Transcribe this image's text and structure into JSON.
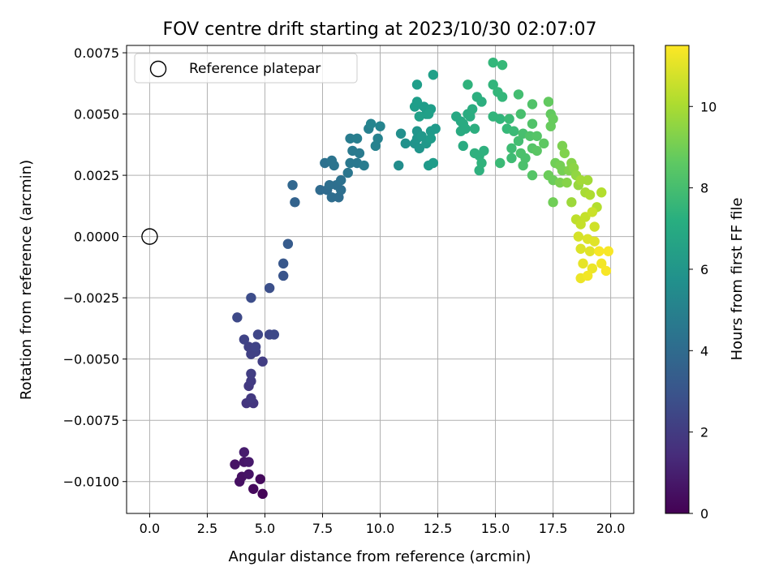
{
  "chart_data": {
    "type": "scatter",
    "title": "FOV centre drift starting at 2023/10/30 02:07:07",
    "xlabel": "Angular distance from reference (arcmin)",
    "ylabel": "Rotation from reference (arcmin)",
    "xlim": [
      -1.0,
      21.0
    ],
    "ylim": [
      -0.0113,
      0.0078
    ],
    "xticks": [
      0.0,
      2.5,
      5.0,
      7.5,
      10.0,
      12.5,
      15.0,
      17.5,
      20.0
    ],
    "xtick_labels": [
      "0.0",
      "2.5",
      "5.0",
      "7.5",
      "10.0",
      "12.5",
      "15.0",
      "17.5",
      "20.0"
    ],
    "yticks": [
      -0.01,
      -0.0075,
      -0.005,
      -0.0025,
      0.0,
      0.0025,
      0.005,
      0.0075
    ],
    "ytick_labels": [
      "−0.0100",
      "−0.0075",
      "−0.0050",
      "−0.0025",
      "0.0000",
      "0.0025",
      "0.0050",
      "0.0075"
    ],
    "grid": true,
    "legend": {
      "position": "top-left",
      "entries": [
        {
          "label": "Reference platepar",
          "marker": "open-circle"
        }
      ]
    },
    "reference_point": {
      "x": 0.0,
      "y": 0.0
    },
    "colorbar": {
      "label": "Hours from first FF file",
      "colormap": "viridis",
      "range": [
        0,
        11.5
      ],
      "ticks": [
        0,
        2,
        4,
        6,
        8,
        10
      ],
      "tick_labels": [
        "0",
        "2",
        "4",
        "6",
        "8",
        "10"
      ]
    },
    "series": [
      {
        "points": [
          {
            "x": 4.9,
            "y": -0.0105,
            "c": 0.1
          },
          {
            "x": 4.5,
            "y": -0.0103,
            "c": 0.3
          },
          {
            "x": 4.8,
            "y": -0.0099,
            "c": 0.3
          },
          {
            "x": 3.9,
            "y": -0.01,
            "c": 0.5
          },
          {
            "x": 4.0,
            "y": -0.0098,
            "c": 0.5
          },
          {
            "x": 4.3,
            "y": -0.0097,
            "c": 0.6
          },
          {
            "x": 3.7,
            "y": -0.0093,
            "c": 0.6
          },
          {
            "x": 4.1,
            "y": -0.0092,
            "c": 0.7
          },
          {
            "x": 4.3,
            "y": -0.0092,
            "c": 0.8
          },
          {
            "x": 4.1,
            "y": -0.0088,
            "c": 0.9
          },
          {
            "x": 4.2,
            "y": -0.0068,
            "c": 1.8
          },
          {
            "x": 4.5,
            "y": -0.0068,
            "c": 1.8
          },
          {
            "x": 4.4,
            "y": -0.0066,
            "c": 1.9
          },
          {
            "x": 4.3,
            "y": -0.0061,
            "c": 1.9
          },
          {
            "x": 4.4,
            "y": -0.0059,
            "c": 2.0
          },
          {
            "x": 4.4,
            "y": -0.0056,
            "c": 2.1
          },
          {
            "x": 4.9,
            "y": -0.0051,
            "c": 2.1
          },
          {
            "x": 4.4,
            "y": -0.0048,
            "c": 2.2
          },
          {
            "x": 4.6,
            "y": -0.0047,
            "c": 2.2
          },
          {
            "x": 4.3,
            "y": -0.0045,
            "c": 2.2
          },
          {
            "x": 4.6,
            "y": -0.0045,
            "c": 2.3
          },
          {
            "x": 4.1,
            "y": -0.0042,
            "c": 2.3
          },
          {
            "x": 4.7,
            "y": -0.004,
            "c": 2.4
          },
          {
            "x": 5.2,
            "y": -0.004,
            "c": 2.4
          },
          {
            "x": 5.4,
            "y": -0.004,
            "c": 2.5
          },
          {
            "x": 3.8,
            "y": -0.0033,
            "c": 2.5
          },
          {
            "x": 4.4,
            "y": -0.0025,
            "c": 2.7
          },
          {
            "x": 5.2,
            "y": -0.0021,
            "c": 2.8
          },
          {
            "x": 5.8,
            "y": -0.0016,
            "c": 3.0
          },
          {
            "x": 5.8,
            "y": -0.0011,
            "c": 3.1
          },
          {
            "x": 6.0,
            "y": -0.0003,
            "c": 3.3
          },
          {
            "x": 6.3,
            "y": 0.0014,
            "c": 3.6
          },
          {
            "x": 6.2,
            "y": 0.0021,
            "c": 3.8
          },
          {
            "x": 7.4,
            "y": 0.0019,
            "c": 4.0
          },
          {
            "x": 7.7,
            "y": 0.0019,
            "c": 4.0
          },
          {
            "x": 7.9,
            "y": 0.0016,
            "c": 4.1
          },
          {
            "x": 8.2,
            "y": 0.0016,
            "c": 4.1
          },
          {
            "x": 8.3,
            "y": 0.0019,
            "c": 4.2
          },
          {
            "x": 8.1,
            "y": 0.0021,
            "c": 4.2
          },
          {
            "x": 7.8,
            "y": 0.0021,
            "c": 4.2
          },
          {
            "x": 8.3,
            "y": 0.0023,
            "c": 4.3
          },
          {
            "x": 7.6,
            "y": 0.003,
            "c": 4.3
          },
          {
            "x": 7.9,
            "y": 0.0031,
            "c": 4.4
          },
          {
            "x": 8.0,
            "y": 0.0029,
            "c": 4.4
          },
          {
            "x": 8.6,
            "y": 0.0026,
            "c": 4.5
          },
          {
            "x": 8.7,
            "y": 0.003,
            "c": 4.6
          },
          {
            "x": 9.0,
            "y": 0.003,
            "c": 4.6
          },
          {
            "x": 8.8,
            "y": 0.0035,
            "c": 4.7
          },
          {
            "x": 9.1,
            "y": 0.0034,
            "c": 4.7
          },
          {
            "x": 9.3,
            "y": 0.0029,
            "c": 4.8
          },
          {
            "x": 8.7,
            "y": 0.004,
            "c": 4.8
          },
          {
            "x": 9.0,
            "y": 0.004,
            "c": 4.9
          },
          {
            "x": 9.5,
            "y": 0.0044,
            "c": 5.0
          },
          {
            "x": 9.9,
            "y": 0.004,
            "c": 5.1
          },
          {
            "x": 9.8,
            "y": 0.0037,
            "c": 5.1
          },
          {
            "x": 10.0,
            "y": 0.0045,
            "c": 5.2
          },
          {
            "x": 9.6,
            "y": 0.0046,
            "c": 5.2
          },
          {
            "x": 10.8,
            "y": 0.0029,
            "c": 5.6
          },
          {
            "x": 10.9,
            "y": 0.0042,
            "c": 5.7
          },
          {
            "x": 11.1,
            "y": 0.0038,
            "c": 5.8
          },
          {
            "x": 11.5,
            "y": 0.0038,
            "c": 5.9
          },
          {
            "x": 11.7,
            "y": 0.0036,
            "c": 6.0
          },
          {
            "x": 11.6,
            "y": 0.004,
            "c": 6.0
          },
          {
            "x": 11.6,
            "y": 0.0043,
            "c": 6.0
          },
          {
            "x": 11.8,
            "y": 0.0041,
            "c": 6.1
          },
          {
            "x": 12.0,
            "y": 0.0038,
            "c": 6.1
          },
          {
            "x": 12.2,
            "y": 0.0043,
            "c": 6.2
          },
          {
            "x": 12.4,
            "y": 0.0044,
            "c": 6.2
          },
          {
            "x": 12.1,
            "y": 0.0029,
            "c": 6.2
          },
          {
            "x": 12.3,
            "y": 0.003,
            "c": 6.3
          },
          {
            "x": 12.2,
            "y": 0.004,
            "c": 6.3
          },
          {
            "x": 12.0,
            "y": 0.005,
            "c": 6.3
          },
          {
            "x": 11.9,
            "y": 0.0053,
            "c": 6.3
          },
          {
            "x": 12.2,
            "y": 0.0052,
            "c": 6.4
          },
          {
            "x": 11.5,
            "y": 0.0053,
            "c": 6.4
          },
          {
            "x": 11.6,
            "y": 0.0055,
            "c": 6.4
          },
          {
            "x": 11.6,
            "y": 0.0062,
            "c": 6.4
          },
          {
            "x": 12.3,
            "y": 0.0066,
            "c": 6.5
          },
          {
            "x": 11.7,
            "y": 0.0049,
            "c": 6.5
          },
          {
            "x": 12.1,
            "y": 0.005,
            "c": 6.5
          },
          {
            "x": 13.3,
            "y": 0.0049,
            "c": 6.9
          },
          {
            "x": 13.5,
            "y": 0.0047,
            "c": 6.9
          },
          {
            "x": 13.6,
            "y": 0.0046,
            "c": 7.0
          },
          {
            "x": 13.5,
            "y": 0.0043,
            "c": 7.0
          },
          {
            "x": 13.6,
            "y": 0.0037,
            "c": 7.0
          },
          {
            "x": 13.7,
            "y": 0.0044,
            "c": 7.0
          },
          {
            "x": 13.8,
            "y": 0.005,
            "c": 7.1
          },
          {
            "x": 13.9,
            "y": 0.0049,
            "c": 7.1
          },
          {
            "x": 14.0,
            "y": 0.0052,
            "c": 7.1
          },
          {
            "x": 14.2,
            "y": 0.0057,
            "c": 7.2
          },
          {
            "x": 14.4,
            "y": 0.0055,
            "c": 7.2
          },
          {
            "x": 14.1,
            "y": 0.0044,
            "c": 7.2
          },
          {
            "x": 14.1,
            "y": 0.0034,
            "c": 7.3
          },
          {
            "x": 14.3,
            "y": 0.0033,
            "c": 7.3
          },
          {
            "x": 14.5,
            "y": 0.0035,
            "c": 7.3
          },
          {
            "x": 14.3,
            "y": 0.0027,
            "c": 7.3
          },
          {
            "x": 14.4,
            "y": 0.003,
            "c": 7.4
          },
          {
            "x": 13.8,
            "y": 0.0062,
            "c": 7.4
          },
          {
            "x": 14.9,
            "y": 0.0049,
            "c": 7.5
          },
          {
            "x": 15.2,
            "y": 0.0048,
            "c": 7.5
          },
          {
            "x": 14.9,
            "y": 0.0062,
            "c": 7.5
          },
          {
            "x": 15.1,
            "y": 0.0059,
            "c": 7.6
          },
          {
            "x": 15.3,
            "y": 0.0057,
            "c": 7.6
          },
          {
            "x": 14.9,
            "y": 0.0071,
            "c": 7.6
          },
          {
            "x": 15.3,
            "y": 0.007,
            "c": 7.7
          },
          {
            "x": 15.5,
            "y": 0.0044,
            "c": 7.7
          },
          {
            "x": 15.6,
            "y": 0.0048,
            "c": 7.8
          },
          {
            "x": 15.8,
            "y": 0.0043,
            "c": 7.8
          },
          {
            "x": 15.2,
            "y": 0.003,
            "c": 7.8
          },
          {
            "x": 15.7,
            "y": 0.0032,
            "c": 7.9
          },
          {
            "x": 15.7,
            "y": 0.0036,
            "c": 7.9
          },
          {
            "x": 16.0,
            "y": 0.0039,
            "c": 8.0
          },
          {
            "x": 16.0,
            "y": 0.0058,
            "c": 8.0
          },
          {
            "x": 16.1,
            "y": 0.005,
            "c": 8.1
          },
          {
            "x": 16.2,
            "y": 0.0042,
            "c": 8.1
          },
          {
            "x": 16.1,
            "y": 0.0034,
            "c": 8.2
          },
          {
            "x": 16.3,
            "y": 0.0032,
            "c": 8.2
          },
          {
            "x": 16.2,
            "y": 0.0029,
            "c": 8.2
          },
          {
            "x": 16.6,
            "y": 0.0046,
            "c": 8.3
          },
          {
            "x": 16.6,
            "y": 0.0054,
            "c": 8.3
          },
          {
            "x": 16.5,
            "y": 0.0041,
            "c": 8.3
          },
          {
            "x": 16.6,
            "y": 0.0036,
            "c": 8.4
          },
          {
            "x": 16.6,
            "y": 0.0025,
            "c": 8.4
          },
          {
            "x": 16.8,
            "y": 0.0041,
            "c": 8.4
          },
          {
            "x": 16.8,
            "y": 0.0035,
            "c": 8.5
          },
          {
            "x": 17.1,
            "y": 0.0038,
            "c": 8.6
          },
          {
            "x": 17.3,
            "y": 0.0055,
            "c": 8.7
          },
          {
            "x": 17.4,
            "y": 0.005,
            "c": 8.7
          },
          {
            "x": 17.5,
            "y": 0.0048,
            "c": 8.8
          },
          {
            "x": 17.4,
            "y": 0.0045,
            "c": 8.8
          },
          {
            "x": 17.3,
            "y": 0.0025,
            "c": 8.9
          },
          {
            "x": 17.5,
            "y": 0.0023,
            "c": 8.9
          },
          {
            "x": 17.5,
            "y": 0.0014,
            "c": 9.0
          },
          {
            "x": 17.6,
            "y": 0.003,
            "c": 9.0
          },
          {
            "x": 17.8,
            "y": 0.0029,
            "c": 9.1
          },
          {
            "x": 17.9,
            "y": 0.0027,
            "c": 9.1
          },
          {
            "x": 17.8,
            "y": 0.0022,
            "c": 9.2
          },
          {
            "x": 17.9,
            "y": 0.0037,
            "c": 9.2
          },
          {
            "x": 18.0,
            "y": 0.0034,
            "c": 9.3
          },
          {
            "x": 18.2,
            "y": 0.0027,
            "c": 9.3
          },
          {
            "x": 18.1,
            "y": 0.0022,
            "c": 9.4
          },
          {
            "x": 18.3,
            "y": 0.003,
            "c": 9.4
          },
          {
            "x": 18.4,
            "y": 0.0028,
            "c": 9.5
          },
          {
            "x": 18.5,
            "y": 0.0025,
            "c": 9.6
          },
          {
            "x": 18.6,
            "y": 0.0021,
            "c": 9.7
          },
          {
            "x": 18.3,
            "y": 0.0014,
            "c": 9.8
          },
          {
            "x": 18.7,
            "y": 0.0023,
            "c": 9.9
          },
          {
            "x": 19.0,
            "y": 0.0023,
            "c": 9.9
          },
          {
            "x": 18.9,
            "y": 0.0018,
            "c": 10.0
          },
          {
            "x": 19.1,
            "y": 0.0017,
            "c": 10.1
          },
          {
            "x": 19.4,
            "y": 0.0012,
            "c": 10.2
          },
          {
            "x": 19.6,
            "y": 0.0018,
            "c": 10.2
          },
          {
            "x": 18.5,
            "y": 0.0007,
            "c": 10.4
          },
          {
            "x": 18.7,
            "y": 0.0005,
            "c": 10.5
          },
          {
            "x": 18.9,
            "y": 0.0008,
            "c": 10.5
          },
          {
            "x": 19.2,
            "y": 0.001,
            "c": 10.6
          },
          {
            "x": 19.3,
            "y": 0.0004,
            "c": 10.7
          },
          {
            "x": 18.6,
            "y": 0.0,
            "c": 10.8
          },
          {
            "x": 19.0,
            "y": -0.0001,
            "c": 10.9
          },
          {
            "x": 18.7,
            "y": -0.0005,
            "c": 10.9
          },
          {
            "x": 19.3,
            "y": -0.0002,
            "c": 11.0
          },
          {
            "x": 19.1,
            "y": -0.0006,
            "c": 11.0
          },
          {
            "x": 18.8,
            "y": -0.0011,
            "c": 11.1
          },
          {
            "x": 19.2,
            "y": -0.0013,
            "c": 11.2
          },
          {
            "x": 18.7,
            "y": -0.0017,
            "c": 11.2
          },
          {
            "x": 19.0,
            "y": -0.0016,
            "c": 11.3
          },
          {
            "x": 19.6,
            "y": -0.0011,
            "c": 11.3
          },
          {
            "x": 19.8,
            "y": -0.0014,
            "c": 11.4
          },
          {
            "x": 19.9,
            "y": -0.0006,
            "c": 11.4
          },
          {
            "x": 19.5,
            "y": -0.0006,
            "c": 11.4
          }
        ]
      }
    ]
  }
}
